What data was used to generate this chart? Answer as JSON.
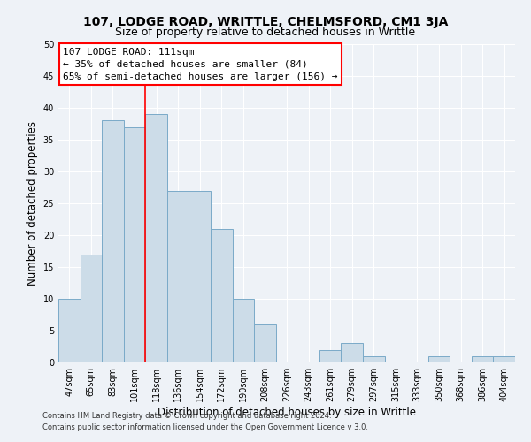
{
  "title": "107, LODGE ROAD, WRITTLE, CHELMSFORD, CM1 3JA",
  "subtitle": "Size of property relative to detached houses in Writtle",
  "xlabel": "Distribution of detached houses by size in Writtle",
  "ylabel": "Number of detached properties",
  "footer_line1": "Contains HM Land Registry data © Crown copyright and database right 2024.",
  "footer_line2": "Contains public sector information licensed under the Open Government Licence v 3.0.",
  "bar_labels": [
    "47sqm",
    "65sqm",
    "83sqm",
    "101sqm",
    "118sqm",
    "136sqm",
    "154sqm",
    "172sqm",
    "190sqm",
    "208sqm",
    "226sqm",
    "243sqm",
    "261sqm",
    "279sqm",
    "297sqm",
    "315sqm",
    "333sqm",
    "350sqm",
    "368sqm",
    "386sqm",
    "404sqm"
  ],
  "bar_values": [
    10,
    17,
    38,
    37,
    39,
    27,
    27,
    21,
    10,
    6,
    0,
    0,
    2,
    3,
    1,
    0,
    0,
    1,
    0,
    1,
    1
  ],
  "bar_color": "#ccdce8",
  "bar_edge_color": "#7aaac8",
  "ylim": [
    0,
    50
  ],
  "yticks": [
    0,
    5,
    10,
    15,
    20,
    25,
    30,
    35,
    40,
    45,
    50
  ],
  "property_label": "107 LODGE ROAD: 111sqm",
  "annotation_line1": "← 35% of detached houses are smaller (84)",
  "annotation_line2": "65% of semi-detached houses are larger (156) →",
  "vline_bin_index": 4,
  "box_color": "white",
  "box_edge_color": "red",
  "vline_color": "red",
  "background_color": "#eef2f7",
  "grid_color": "white",
  "title_fontsize": 10,
  "subtitle_fontsize": 9,
  "xlabel_fontsize": 8.5,
  "ylabel_fontsize": 8.5,
  "tick_fontsize": 7,
  "annotation_fontsize": 8,
  "footer_fontsize": 6
}
